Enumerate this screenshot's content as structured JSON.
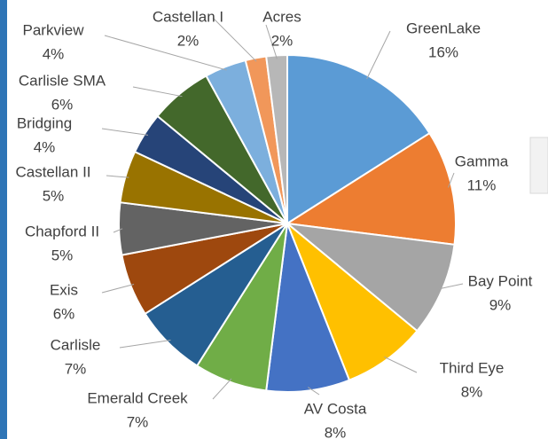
{
  "chart_data": {
    "type": "pie",
    "categories": [
      "GreenLake",
      "Gamma",
      "Bay Point",
      "Third Eye",
      "AV Costa",
      "Emerald Creek",
      "Carlisle",
      "Exis",
      "Chapford II",
      "Castellan II",
      "Bridging",
      "Carlisle SMA",
      "Parkview",
      "Castellan I",
      "Acres"
    ],
    "values": [
      16,
      11,
      9,
      8,
      8,
      7,
      7,
      6,
      5,
      5,
      4,
      6,
      4,
      2,
      2
    ],
    "value_labels": [
      "16%",
      "11%",
      "9%",
      "8%",
      "8%",
      "7%",
      "7%",
      "6%",
      "5%",
      "5%",
      "4%",
      "6%",
      "4%",
      "2%",
      "2%"
    ],
    "colors": [
      "#5b9bd5",
      "#ed7d31",
      "#a5a5a5",
      "#ffc000",
      "#4472c4",
      "#70ad47",
      "#255e91",
      "#9e480e",
      "#636363",
      "#997300",
      "#264478",
      "#43682b",
      "#7cafdd",
      "#f1975a",
      "#b7b7b7"
    ]
  }
}
